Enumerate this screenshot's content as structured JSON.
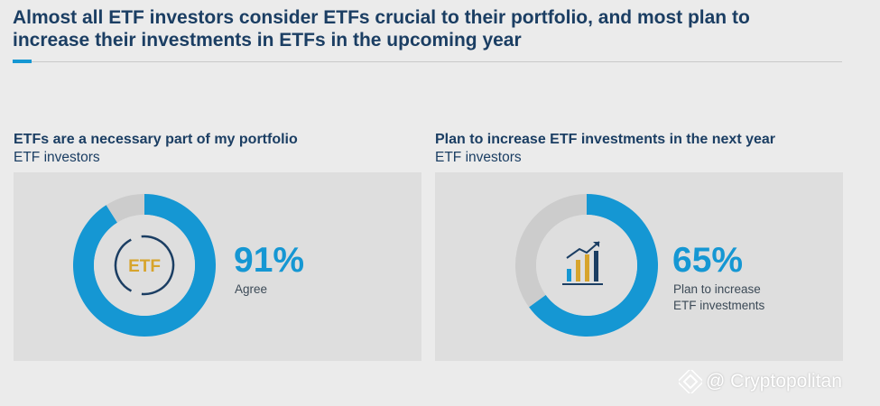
{
  "headline": "Almost all ETF investors consider ETFs crucial to their portfolio, and most plan to increase their investments in ETFs in the upcoming year",
  "colors": {
    "accent": "#1597d3",
    "track": "#cccccc",
    "navy": "#1b3e63",
    "gold": "#d7a42c"
  },
  "panels": [
    {
      "title": "ETFs are a necessary part of my portfolio",
      "subtitle": "ETF investors",
      "percent_text": "91%",
      "label": "Agree",
      "icon_text": "ETF",
      "icon": "etf-badge-icon"
    },
    {
      "title": "Plan to increase ETF investments in the next year",
      "subtitle": "ETF investors",
      "percent_text": "65%",
      "label": "Plan to increase\nETF investments",
      "icon": "growth-bar-chart-icon"
    }
  ],
  "chart_data": [
    {
      "type": "pie",
      "title": "ETFs are a necessary part of my portfolio",
      "subtitle": "ETF investors",
      "values": [
        91,
        9
      ],
      "categories": [
        "Agree",
        ""
      ],
      "colors": [
        "#1597d3",
        "#cccccc"
      ]
    },
    {
      "type": "pie",
      "title": "Plan to increase ETF investments in the next year",
      "subtitle": "ETF investors",
      "values": [
        65,
        35
      ],
      "categories": [
        "Plan to increase ETF investments",
        ""
      ],
      "colors": [
        "#1597d3",
        "#cccccc"
      ]
    }
  ],
  "watermark": {
    "text": "@ Cryptopolitan",
    "icon": "diamond-logo-icon"
  }
}
